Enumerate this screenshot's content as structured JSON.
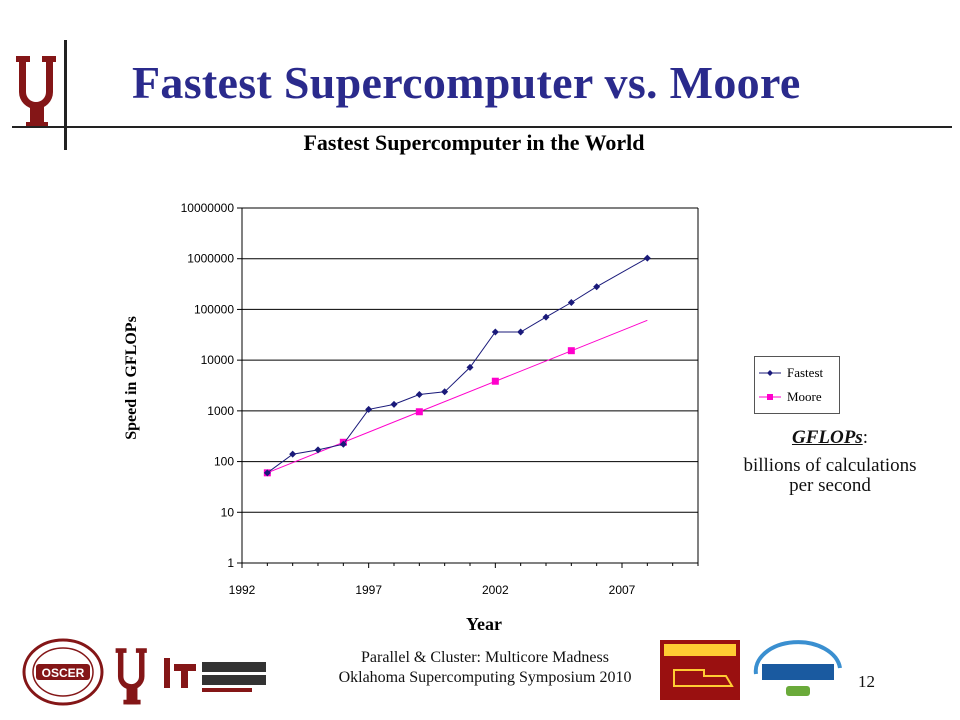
{
  "slide": {
    "title": "Fastest Supercomputer vs. Moore",
    "slide_number": "12"
  },
  "chart_data": {
    "type": "line",
    "title": "Fastest Supercomputer in the World",
    "xlabel": "Year",
    "ylabel": "Speed in GFLOPs",
    "x_scale": "linear",
    "y_scale": "log",
    "xlim": [
      1992,
      2010
    ],
    "ylim": [
      1,
      10000000
    ],
    "x_ticks": [
      1992,
      1997,
      2002,
      2007
    ],
    "y_ticks": [
      {
        "value": 1,
        "label": "1"
      },
      {
        "value": 10,
        "label": "10"
      },
      {
        "value": 100,
        "label": "100"
      },
      {
        "value": 1000,
        "label": "1000"
      },
      {
        "value": 10000,
        "label": "10000"
      },
      {
        "value": 100000,
        "label": "100000"
      },
      {
        "value": 1000000,
        "label": "1000000"
      },
      {
        "value": 10000000,
        "label": "10000000"
      }
    ],
    "grid": "horizontal",
    "legend_position": "right",
    "series": [
      {
        "name": "Fastest",
        "color": "#1a1a7a",
        "marker": "diamond",
        "points": [
          [
            1993,
            60
          ],
          [
            1994,
            140
          ],
          [
            1995,
            170
          ],
          [
            1996,
            220
          ],
          [
            1997,
            1070
          ],
          [
            1998,
            1340
          ],
          [
            1999,
            2100
          ],
          [
            2000,
            2380
          ],
          [
            2001,
            7200
          ],
          [
            2002,
            35900
          ],
          [
            2003,
            35900
          ],
          [
            2004,
            70700
          ],
          [
            2005,
            136800
          ],
          [
            2006,
            280600
          ],
          [
            2008,
            1026000
          ]
        ]
      },
      {
        "name": "Moore",
        "color": "#ff00cc",
        "marker": "square",
        "line_points": [
          [
            1993,
            60
          ],
          [
            2008,
            61000
          ]
        ],
        "points": [
          [
            1993,
            60
          ],
          [
            1996,
            240
          ],
          [
            1999,
            960
          ],
          [
            2002,
            3840
          ],
          [
            2005,
            15360
          ]
        ]
      }
    ]
  },
  "annotation": {
    "term": "GFLOPs",
    "colon": ":",
    "definition": "billions of calculations per second"
  },
  "footer": {
    "line1": "Parallel & Cluster: Multicore Madness",
    "line2": "Oklahoma Supercomputing Symposium 2010"
  },
  "colors": {
    "ou_crimson": "#841617",
    "title_blue": "#2a2a8c"
  },
  "logos": [
    "oscer-seal",
    "ou-logo",
    "ou-it-logo",
    "symposium-2010-logo",
    "epscor-logo"
  ]
}
